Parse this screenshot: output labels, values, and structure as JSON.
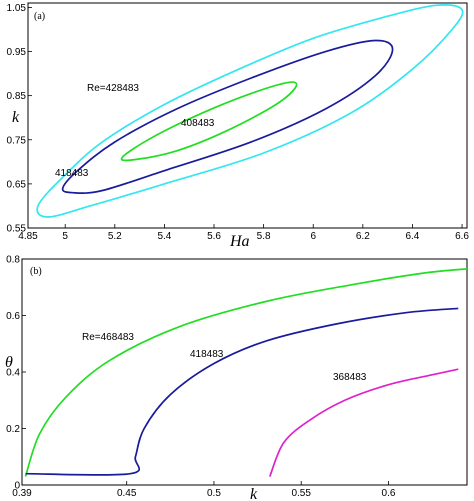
{
  "chart_data": [
    {
      "type": "line",
      "panel_label": "(a)",
      "title": "",
      "xlabel": "Ha",
      "ylabel": "k",
      "xlim": [
        4.85,
        6.62
      ],
      "ylim": [
        0.55,
        1.06
      ],
      "xticks": [
        "4.85",
        "5",
        "5.2",
        "5.4",
        "5.6",
        "5.8",
        "6",
        "6.2",
        "6.4",
        "6.6"
      ],
      "yticks": [
        "0.55",
        "0.65",
        "0.75",
        "0.85",
        "0.95",
        "1.05"
      ],
      "series": [
        {
          "name": "Re=428483",
          "color": "#33e6f0",
          "closed": true,
          "x": [
            4.89,
            4.99,
            5.15,
            5.4,
            5.7,
            6.0,
            6.3,
            6.5,
            6.6,
            6.56,
            6.4,
            6.15,
            5.8,
            5.4,
            5.1,
            4.93
          ],
          "y": [
            0.6,
            0.665,
            0.745,
            0.83,
            0.91,
            0.98,
            1.03,
            1.055,
            1.045,
            1.0,
            0.91,
            0.81,
            0.72,
            0.65,
            0.6,
            0.575
          ]
        },
        {
          "name": "418483",
          "color": "#1a1a9c",
          "closed": true,
          "x": [
            4.99,
            5.05,
            5.2,
            5.45,
            5.75,
            6.05,
            6.25,
            6.32,
            6.25,
            6.05,
            5.75,
            5.4,
            5.15,
            5.03
          ],
          "y": [
            0.64,
            0.68,
            0.745,
            0.82,
            0.89,
            0.95,
            0.975,
            0.955,
            0.895,
            0.82,
            0.745,
            0.68,
            0.635,
            0.63
          ]
        },
        {
          "name": "408483",
          "color": "#22dd22",
          "closed": true,
          "x": [
            5.23,
            5.35,
            5.55,
            5.75,
            5.9,
            5.93,
            5.85,
            5.65,
            5.45,
            5.28
          ],
          "y": [
            0.71,
            0.755,
            0.81,
            0.855,
            0.88,
            0.87,
            0.83,
            0.77,
            0.725,
            0.705
          ]
        }
      ],
      "annotations": [
        "Re=428483",
        "418483",
        "408483"
      ]
    },
    {
      "type": "line",
      "panel_label": "(b)",
      "title": "",
      "xlabel": "k",
      "ylabel": "θ",
      "xlim": [
        0.39,
        0.645
      ],
      "ylim": [
        0,
        0.8
      ],
      "xticks": [
        "0.39",
        "0.45",
        "0.5",
        "0.55",
        "0.6"
      ],
      "yticks": [
        "0",
        "0.2",
        "0.4",
        "0.6",
        "0.8"
      ],
      "series": [
        {
          "name": "Re=468483",
          "color": "#22dd22",
          "x": [
            0.392,
            0.4,
            0.415,
            0.44,
            0.48,
            0.53,
            0.58,
            0.62,
            0.645
          ],
          "y": [
            0.03,
            0.18,
            0.31,
            0.44,
            0.56,
            0.65,
            0.71,
            0.75,
            0.765
          ]
        },
        {
          "name": "418483",
          "color": "#1a1a9c",
          "x": [
            0.392,
            0.452,
            0.455,
            0.46,
            0.475,
            0.5,
            0.53,
            0.57,
            0.61,
            0.64
          ],
          "y": [
            0.04,
            0.04,
            0.1,
            0.2,
            0.32,
            0.43,
            0.51,
            0.57,
            0.61,
            0.625
          ]
        },
        {
          "name": "368483",
          "color": "#dd22cc",
          "x": [
            0.532,
            0.54,
            0.555,
            0.575,
            0.6,
            0.625,
            0.64
          ],
          "y": [
            0.03,
            0.15,
            0.23,
            0.3,
            0.355,
            0.39,
            0.41
          ]
        }
      ],
      "annotations": [
        "Re=468483",
        "418483",
        "368483"
      ]
    }
  ]
}
